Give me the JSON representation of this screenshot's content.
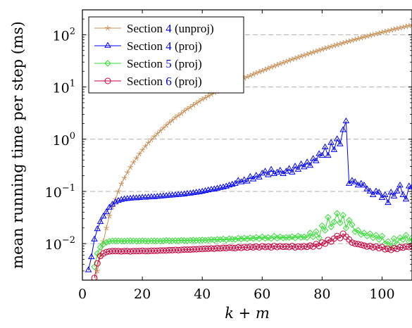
{
  "chart_data": {
    "type": "line",
    "title": "",
    "xlabel": "k + m",
    "ylabel": "mean running time per step (ms)",
    "xlim": [
      0,
      110
    ],
    "ylim": [
      0.002,
      300
    ],
    "yscale": "log",
    "xticks": [
      0,
      20,
      40,
      60,
      80,
      100
    ],
    "yticks": [
      {
        "value": 0.01,
        "base": "10",
        "exp": "−2"
      },
      {
        "value": 0.1,
        "base": "10",
        "exp": "−1"
      },
      {
        "value": 1,
        "base": "10",
        "exp": "0"
      },
      {
        "value": 10,
        "base": "10",
        "exp": "1"
      },
      {
        "value": 100,
        "base": "10",
        "exp": "2"
      }
    ],
    "grid": "horizontal dashed at major y ticks",
    "legend_position": "top-left",
    "series": [
      {
        "name": "Section 4 (unproj)",
        "label_prefix": "Section ",
        "label_ref": "4",
        "label_suffix": " (unproj)",
        "color": "#c8915a",
        "marker": "star",
        "x": [
          3,
          4,
          5,
          6,
          7,
          8,
          9,
          10,
          11,
          12,
          13,
          14,
          15,
          16,
          17,
          18,
          19,
          20,
          21,
          22,
          23,
          24,
          25,
          26,
          27,
          28,
          29,
          30,
          31,
          32,
          33,
          34,
          35,
          36,
          37,
          38,
          39,
          40,
          41,
          42,
          43,
          44,
          45,
          46,
          47,
          48,
          49,
          50,
          51,
          52,
          53,
          54,
          55,
          56,
          57,
          58,
          59,
          60,
          61,
          62,
          63,
          64,
          65,
          66,
          67,
          68,
          69,
          70,
          71,
          72,
          73,
          74,
          75,
          76,
          77,
          78,
          79,
          80,
          81,
          82,
          83,
          84,
          85,
          86,
          87,
          88,
          89,
          90,
          91,
          92,
          93,
          94,
          95,
          96,
          97,
          98,
          99,
          100,
          101,
          102,
          103,
          104,
          105,
          106,
          107,
          108,
          109,
          110
        ],
        "y": [
          0.001,
          0.0016,
          0.003,
          0.006,
          0.011,
          0.02,
          0.034,
          0.05,
          0.07,
          0.1,
          0.14,
          0.18,
          0.23,
          0.29,
          0.36,
          0.43,
          0.52,
          0.62,
          0.73,
          0.85,
          0.98,
          1.12,
          1.28,
          1.45,
          1.64,
          1.85,
          2.08,
          2.3,
          2.6,
          2.85,
          3.1,
          3.45,
          3.8,
          4.1,
          4.5,
          4.9,
          5.3,
          5.8,
          6.2,
          6.7,
          7.2,
          7.8,
          8.3,
          8.9,
          9.5,
          10.2,
          10.9,
          11.6,
          12.3,
          13.1,
          13.9,
          14.7,
          15.6,
          16.5,
          17.5,
          18.5,
          19.5,
          20.5,
          21.6,
          22.8,
          24,
          25.2,
          26.5,
          27.9,
          29.3,
          30.7,
          32.2,
          33.8,
          35.4,
          37,
          38.8,
          40.6,
          42.4,
          44.3,
          46.3,
          48.3,
          50.4,
          52.6,
          54.8,
          57.1,
          59.5,
          62,
          64.5,
          67,
          69.7,
          72.5,
          75.3,
          78.1,
          81.1,
          84.1,
          87.3,
          90.5,
          93.8,
          97.2,
          100.6,
          104.2,
          107.8,
          111.5,
          115.3,
          119.2,
          123.2,
          127.3,
          131.4,
          135.7,
          140,
          144.5,
          149,
          153.6
        ]
      },
      {
        "name": "Section 4 (proj)",
        "label_prefix": "Section ",
        "label_ref": "4",
        "label_suffix": " (proj)",
        "color": "#0000ff",
        "marker": "triangle",
        "x": [
          2,
          3,
          4,
          5,
          6,
          7,
          8,
          9,
          10,
          11,
          12,
          13,
          14,
          15,
          16,
          17,
          18,
          19,
          20,
          21,
          22,
          23,
          24,
          25,
          26,
          27,
          28,
          29,
          30,
          31,
          32,
          33,
          34,
          35,
          36,
          37,
          38,
          39,
          40,
          41,
          42,
          43,
          44,
          45,
          46,
          47,
          48,
          49,
          50,
          51,
          52,
          53,
          54,
          55,
          56,
          57,
          58,
          59,
          60,
          61,
          62,
          63,
          64,
          65,
          66,
          67,
          68,
          69,
          70,
          71,
          72,
          73,
          74,
          75,
          76,
          77,
          78,
          79,
          80,
          81,
          82,
          83,
          84,
          85,
          86,
          87,
          88,
          89,
          90,
          91,
          92,
          93,
          94,
          95,
          96,
          97,
          98,
          99,
          100,
          101,
          102,
          103,
          104,
          105,
          106,
          107,
          108,
          109,
          110
        ],
        "y": [
          0.0031,
          0.0055,
          0.012,
          0.019,
          0.026,
          0.033,
          0.04,
          0.049,
          0.056,
          0.062,
          0.066,
          0.069,
          0.071,
          0.072,
          0.073,
          0.074,
          0.074,
          0.075,
          0.076,
          0.076,
          0.077,
          0.078,
          0.078,
          0.079,
          0.08,
          0.081,
          0.082,
          0.083,
          0.084,
          0.085,
          0.086,
          0.087,
          0.088,
          0.09,
          0.091,
          0.093,
          0.095,
          0.097,
          0.099,
          0.102,
          0.105,
          0.108,
          0.11,
          0.113,
          0.117,
          0.12,
          0.124,
          0.13,
          0.135,
          0.14,
          0.16,
          0.15,
          0.165,
          0.155,
          0.19,
          0.17,
          0.2,
          0.185,
          0.22,
          0.24,
          0.205,
          0.26,
          0.215,
          0.23,
          0.25,
          0.215,
          0.24,
          0.27,
          0.23,
          0.3,
          0.26,
          0.33,
          0.29,
          0.36,
          0.31,
          0.42,
          0.38,
          0.52,
          0.48,
          0.7,
          0.48,
          0.85,
          0.62,
          1.0,
          0.8,
          1.5,
          2.2,
          0.14,
          0.16,
          0.15,
          0.13,
          0.14,
          0.13,
          0.11,
          0.1,
          0.085,
          0.1,
          0.095,
          0.075,
          0.085,
          0.06,
          0.095,
          0.08,
          0.1,
          0.13,
          0.085,
          0.07,
          0.125,
          0.12
        ]
      },
      {
        "name": "Section 5 (proj)",
        "label_prefix": "Section ",
        "label_ref": "5",
        "label_suffix": " (proj)",
        "color": "#33dd33",
        "marker": "diamond",
        "x": [
          4,
          5,
          6,
          7,
          8,
          9,
          10,
          11,
          12,
          13,
          14,
          15,
          16,
          17,
          18,
          19,
          20,
          21,
          22,
          23,
          24,
          25,
          26,
          27,
          28,
          29,
          30,
          31,
          32,
          33,
          34,
          35,
          36,
          37,
          38,
          39,
          40,
          41,
          42,
          43,
          44,
          45,
          46,
          47,
          48,
          49,
          50,
          51,
          52,
          53,
          54,
          55,
          56,
          57,
          58,
          59,
          60,
          61,
          62,
          63,
          64,
          65,
          66,
          67,
          68,
          69,
          70,
          71,
          72,
          73,
          74,
          75,
          76,
          77,
          78,
          79,
          80,
          81,
          82,
          83,
          84,
          85,
          86,
          87,
          88,
          89,
          90,
          91,
          92,
          93,
          94,
          95,
          96,
          97,
          98,
          99,
          100,
          101,
          102,
          103,
          104,
          105,
          106,
          107,
          108,
          109,
          110
        ],
        "y": [
          0.0036,
          0.0065,
          0.0085,
          0.0098,
          0.0106,
          0.0111,
          0.0113,
          0.0114,
          0.0113,
          0.0112,
          0.0112,
          0.0113,
          0.0114,
          0.0113,
          0.0112,
          0.0113,
          0.0114,
          0.0113,
          0.0112,
          0.0113,
          0.0114,
          0.0113,
          0.0112,
          0.0113,
          0.0115,
          0.0114,
          0.0113,
          0.0115,
          0.0114,
          0.0116,
          0.0115,
          0.0114,
          0.0116,
          0.0117,
          0.0115,
          0.0117,
          0.0118,
          0.0116,
          0.0118,
          0.012,
          0.0117,
          0.0121,
          0.0119,
          0.0123,
          0.0118,
          0.0124,
          0.0122,
          0.012,
          0.0127,
          0.0122,
          0.0128,
          0.0123,
          0.0129,
          0.0125,
          0.0132,
          0.0124,
          0.0135,
          0.0126,
          0.0131,
          0.0125,
          0.0138,
          0.0127,
          0.0135,
          0.0128,
          0.0132,
          0.013,
          0.0136,
          0.0128,
          0.014,
          0.0132,
          0.0135,
          0.0131,
          0.016,
          0.0135,
          0.017,
          0.013,
          0.022,
          0.018,
          0.032,
          0.021,
          0.026,
          0.038,
          0.025,
          0.035,
          0.02,
          0.028,
          0.023,
          0.017,
          0.018,
          0.015,
          0.016,
          0.014,
          0.0155,
          0.013,
          0.0145,
          0.012,
          0.014,
          0.01,
          0.011,
          0.009,
          0.0125,
          0.01,
          0.013,
          0.012,
          0.0145,
          0.011,
          0.013
        ]
      },
      {
        "name": "Section 6 (proj)",
        "label_prefix": "Section ",
        "label_ref": "6",
        "label_suffix": " (proj)",
        "color": "#c8003c",
        "marker": "circle",
        "x": [
          4,
          5,
          6,
          7,
          8,
          9,
          10,
          11,
          12,
          13,
          14,
          15,
          16,
          17,
          18,
          19,
          20,
          21,
          22,
          23,
          24,
          25,
          26,
          27,
          28,
          29,
          30,
          31,
          32,
          33,
          34,
          35,
          36,
          37,
          38,
          39,
          40,
          41,
          42,
          43,
          44,
          45,
          46,
          47,
          48,
          49,
          50,
          51,
          52,
          53,
          54,
          55,
          56,
          57,
          58,
          59,
          60,
          61,
          62,
          63,
          64,
          65,
          66,
          67,
          68,
          69,
          70,
          71,
          72,
          73,
          74,
          75,
          76,
          77,
          78,
          79,
          80,
          81,
          82,
          83,
          84,
          85,
          86,
          87,
          88,
          89,
          90,
          91,
          92,
          93,
          94,
          95,
          96,
          97,
          98,
          99,
          100,
          101,
          102,
          103,
          104,
          105,
          106,
          107,
          108,
          109,
          110
        ],
        "y": [
          0.0022,
          0.0042,
          0.0058,
          0.0065,
          0.0069,
          0.0071,
          0.0072,
          0.0072,
          0.0072,
          0.0071,
          0.0072,
          0.0072,
          0.0071,
          0.0072,
          0.0072,
          0.0072,
          0.0073,
          0.0072,
          0.0072,
          0.0073,
          0.0073,
          0.0073,
          0.0074,
          0.0074,
          0.0074,
          0.0075,
          0.0075,
          0.0076,
          0.0075,
          0.0076,
          0.0077,
          0.0077,
          0.0077,
          0.0078,
          0.0078,
          0.0079,
          0.0079,
          0.008,
          0.008,
          0.0081,
          0.008,
          0.0082,
          0.0081,
          0.0083,
          0.0082,
          0.0084,
          0.0083,
          0.0082,
          0.0085,
          0.0083,
          0.0086,
          0.0084,
          0.0087,
          0.0085,
          0.0088,
          0.0085,
          0.0089,
          0.0086,
          0.0088,
          0.0085,
          0.009,
          0.0086,
          0.0089,
          0.0087,
          0.0088,
          0.0086,
          0.009,
          0.0085,
          0.0088,
          0.0086,
          0.0089,
          0.0087,
          0.0092,
          0.0088,
          0.0098,
          0.009,
          0.0105,
          0.01,
          0.0118,
          0.011,
          0.0125,
          0.014,
          0.0128,
          0.0155,
          0.0135,
          0.012,
          0.0105,
          0.01,
          0.0098,
          0.0095,
          0.0092,
          0.0088,
          0.009,
          0.0085,
          0.0088,
          0.0082,
          0.0086,
          0.0078,
          0.008,
          0.0076,
          0.0082,
          0.0079,
          0.0085,
          0.0084,
          0.0088,
          0.0086,
          0.0088
        ]
      }
    ]
  }
}
